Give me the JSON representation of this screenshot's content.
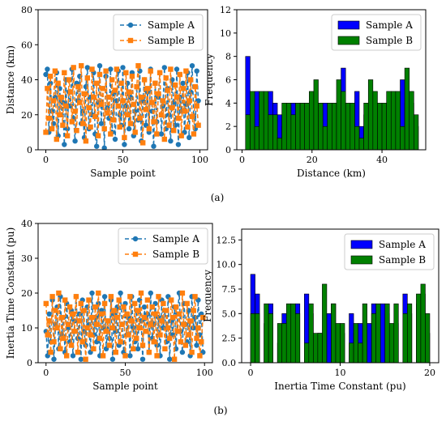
{
  "captions": [
    "(a)",
    "(b)"
  ],
  "chart_data": [
    {
      "type": "line",
      "panel": "a-left",
      "xlabel": "Sample point",
      "ylabel": "Distance (km)",
      "xlim": [
        -5,
        105
      ],
      "ylim": [
        0,
        80
      ],
      "xticks": [
        "0",
        "50",
        "100"
      ],
      "yticks": [
        "0",
        "20",
        "40",
        "60",
        "80"
      ],
      "legend": "top-right",
      "series": [
        {
          "name": "Sample A",
          "color": "#1f77b4",
          "marker": "circle",
          "style": "dashed",
          "x": [
            0,
            1,
            2,
            3,
            4,
            5,
            6,
            7,
            8,
            9,
            10,
            11,
            12,
            13,
            14,
            15,
            16,
            17,
            18,
            19,
            20,
            21,
            22,
            23,
            24,
            25,
            26,
            27,
            28,
            29,
            30,
            31,
            32,
            33,
            34,
            35,
            36,
            37,
            38,
            39,
            40,
            41,
            42,
            43,
            44,
            45,
            46,
            47,
            48,
            49,
            50,
            51,
            52,
            53,
            54,
            55,
            56,
            57,
            58,
            59,
            60,
            61,
            62,
            63,
            64,
            65,
            66,
            67,
            68,
            69,
            70,
            71,
            72,
            73,
            74,
            75,
            76,
            77,
            78,
            79,
            80,
            81,
            82,
            83,
            84,
            85,
            86,
            87,
            88,
            89,
            90,
            91,
            92,
            93,
            94,
            95,
            96,
            97,
            98,
            99
          ],
          "y": [
            43,
            46,
            10,
            38,
            22,
            15,
            30,
            44,
            8,
            35,
            20,
            27,
            3,
            40,
            12,
            33,
            25,
            46,
            18,
            5,
            38,
            28,
            42,
            15,
            22,
            7,
            36,
            47,
            12,
            30,
            20,
            44,
            9,
            2,
            27,
            48,
            15,
            35,
            1,
            42,
            24,
            18,
            46,
            10,
            32,
            6,
            28,
            45,
            20,
            14,
            47,
            3,
            25,
            38,
            12,
            30,
            44,
            8,
            22,
            36,
            17,
            45,
            5,
            28,
            40,
            14,
            33,
            10,
            46,
            22,
            2,
            38,
            16,
            30,
            44,
            9,
            25,
            47,
            12,
            35,
            20,
            5,
            40,
            27,
            14,
            46,
            3,
            30,
            22,
            38,
            10,
            26,
            44,
            7,
            33,
            48,
            19,
            12,
            45,
            28
          ]
        },
        {
          "name": "Sample B",
          "color": "#ff7f0e",
          "marker": "square",
          "style": "dashed",
          "x": [
            0,
            1,
            2,
            3,
            4,
            5,
            6,
            7,
            8,
            9,
            10,
            11,
            12,
            13,
            14,
            15,
            16,
            17,
            18,
            19,
            20,
            21,
            22,
            23,
            24,
            25,
            26,
            27,
            28,
            29,
            30,
            31,
            32,
            33,
            34,
            35,
            36,
            37,
            38,
            39,
            40,
            41,
            42,
            43,
            44,
            45,
            46,
            47,
            48,
            49,
            50,
            51,
            52,
            53,
            54,
            55,
            56,
            57,
            58,
            59,
            60,
            61,
            62,
            63,
            64,
            65,
            66,
            67,
            68,
            69,
            70,
            71,
            72,
            73,
            74,
            75,
            76,
            77,
            78,
            79,
            80,
            81,
            82,
            83,
            84,
            85,
            86,
            87,
            88,
            89,
            90,
            91,
            92,
            93,
            94,
            95,
            96,
            97,
            98,
            99
          ],
          "y": [
            10,
            35,
            18,
            42,
            12,
            28,
            45,
            6,
            38,
            20,
            30,
            14,
            44,
            25,
            8,
            40,
            33,
            16,
            47,
            22,
            11,
            36,
            27,
            48,
            15,
            32,
            5,
            41,
            24,
            13,
            46,
            30,
            19,
            38,
            8,
            43,
            26,
            35,
            12,
            45,
            21,
            30,
            9,
            40,
            17,
            34,
            46,
            25,
            13,
            38,
            28,
            7,
            44,
            20,
            33,
            15,
            42,
            26,
            10,
            36,
            48,
            18,
            30,
            4,
            40,
            23,
            35,
            12,
            45,
            27,
            16,
            38,
            9,
            32,
            44,
            20,
            28,
            6,
            41,
            34,
            14,
            46,
            24,
            11,
            37,
            30,
            18,
            43,
            8,
            35,
            22,
            45,
            13,
            28,
            40,
            19,
            9,
            36,
            25,
            14
          ]
        }
      ]
    },
    {
      "type": "bar",
      "panel": "a-right",
      "xlabel": "Distance (km)",
      "ylabel": "Frequency",
      "xlim": [
        -1.5,
        52.5
      ],
      "ylim": [
        0,
        12
      ],
      "xticks": [
        "0",
        "20",
        "40"
      ],
      "yticks": [
        "0",
        "2",
        "4",
        "6",
        "8",
        "10",
        "12"
      ],
      "legend": "top-right",
      "bin_edges": [
        1.0,
        2.3,
        3.6,
        4.9,
        6.2,
        7.5,
        8.8,
        10.1,
        11.4,
        12.7,
        14.0,
        15.3,
        16.6,
        17.9,
        19.2,
        20.5,
        21.8,
        23.1,
        24.4,
        25.7,
        27.0,
        28.3,
        29.6,
        30.9,
        32.2,
        33.5,
        34.8,
        36.1,
        37.4,
        38.7,
        40.0,
        41.3,
        42.6,
        43.9,
        45.2,
        46.5,
        47.8,
        49.1,
        50.4
      ],
      "series": [
        {
          "name": "Sample A",
          "color": "#0000ff",
          "values": [
            8,
            3,
            5,
            3,
            2,
            5,
            4,
            3,
            2,
            3,
            4,
            3,
            4,
            4,
            3,
            2,
            4,
            4,
            4,
            4,
            2,
            7,
            2,
            2,
            5,
            2,
            3,
            4,
            2,
            2,
            3,
            4,
            2,
            2,
            6,
            4,
            4,
            2
          ]
        },
        {
          "name": "Sample B",
          "color": "#008000",
          "values": [
            3,
            5,
            2,
            5,
            5,
            3,
            3,
            1,
            4,
            4,
            3,
            4,
            4,
            4,
            5,
            6,
            4,
            2,
            4,
            4,
            6,
            5,
            4,
            4,
            2,
            1,
            4,
            6,
            5,
            4,
            4,
            5,
            5,
            5,
            2,
            7,
            5,
            3
          ]
        }
      ]
    },
    {
      "type": "line",
      "panel": "b-left",
      "xlabel": "Sample point",
      "ylabel": "Inertia Time Constant (pu)",
      "xlim": [
        -5,
        105
      ],
      "ylim": [
        0,
        40
      ],
      "xticks": [
        "0",
        "50",
        "100"
      ],
      "yticks": [
        "0",
        "10",
        "20",
        "30",
        "40"
      ],
      "legend": "top-right",
      "series": [
        {
          "name": "Sample A",
          "color": "#1f77b4",
          "marker": "circle",
          "style": "dashed",
          "x": [
            0,
            1,
            2,
            3,
            4,
            5,
            6,
            7,
            8,
            9,
            10,
            11,
            12,
            13,
            14,
            15,
            16,
            17,
            18,
            19,
            20,
            21,
            22,
            23,
            24,
            25,
            26,
            27,
            28,
            29,
            30,
            31,
            32,
            33,
            34,
            35,
            36,
            37,
            38,
            39,
            40,
            41,
            42,
            43,
            44,
            45,
            46,
            47,
            48,
            49,
            50,
            51,
            52,
            53,
            54,
            55,
            56,
            57,
            58,
            59,
            60,
            61,
            62,
            63,
            64,
            65,
            66,
            67,
            68,
            69,
            70,
            71,
            72,
            73,
            74,
            75,
            76,
            77,
            78,
            79,
            80,
            81,
            82,
            83,
            84,
            85,
            86,
            87,
            88,
            89,
            90,
            91,
            92,
            93,
            94,
            95,
            96,
            97,
            98,
            99
          ],
          "y": [
            9,
            2,
            14,
            6,
            18,
            1,
            11,
            16,
            4,
            19,
            8,
            13,
            3,
            17,
            10,
            6,
            15,
            2,
            12,
            19,
            7,
            14,
            1,
            18,
            9,
            5,
            16,
            11,
            3,
            20,
            8,
            13,
            6,
            17,
            2,
            15,
            10,
            19,
            4,
            12,
            7,
            18,
            1,
            14,
            9,
            16,
            5,
            20,
            11,
            3,
            17,
            8,
            13,
            2,
            19,
            10,
            6,
            15,
            4,
            18,
            12,
            1,
            16,
            9,
            14,
            3,
            20,
            7,
            11,
            17,
            5,
            13,
            2,
            18,
            10,
            15,
            6,
            19,
            1,
            12,
            8,
            16,
            4,
            14,
            20,
            9,
            3,
            17,
            11,
            6,
            15,
            2,
            19,
            10,
            13,
            5,
            18,
            8,
            14,
            3
          ]
        },
        {
          "name": "Sample B",
          "color": "#ff7f0e",
          "marker": "square",
          "style": "dashed",
          "x": [
            0,
            1,
            2,
            3,
            4,
            5,
            6,
            7,
            8,
            9,
            10,
            11,
            12,
            13,
            14,
            15,
            16,
            17,
            18,
            19,
            20,
            21,
            22,
            23,
            24,
            25,
            26,
            27,
            28,
            29,
            30,
            31,
            32,
            33,
            34,
            35,
            36,
            37,
            38,
            39,
            40,
            41,
            42,
            43,
            44,
            45,
            46,
            47,
            48,
            49,
            50,
            51,
            52,
            53,
            54,
            55,
            56,
            57,
            58,
            59,
            60,
            61,
            62,
            63,
            64,
            65,
            66,
            67,
            68,
            69,
            70,
            71,
            72,
            73,
            74,
            75,
            76,
            77,
            78,
            79,
            80,
            81,
            82,
            83,
            84,
            85,
            86,
            87,
            88,
            89,
            90,
            91,
            92,
            93,
            94,
            95,
            96,
            97,
            98,
            99
          ],
          "y": [
            17,
            8,
            12,
            3,
            19,
            6,
            15,
            10,
            20,
            4,
            13,
            7,
            18,
            2,
            11,
            16,
            5,
            14,
            9,
            19,
            3,
            12,
            17,
            6,
            15,
            1,
            10,
            18,
            8,
            13,
            4,
            16,
            11,
            20,
            7,
            14,
            2,
            17,
            9,
            12,
            5,
            19,
            10,
            15,
            3,
            13,
            18,
            6,
            11,
            16,
            2,
            14,
            8,
            19,
            12,
            4,
            17,
            7,
            15,
            10,
            20,
            5,
            13,
            9,
            18,
            3,
            11,
            16,
            6,
            14,
            2,
            19,
            8,
            12,
            17,
            4,
            15,
            10,
            7,
            18,
            13,
            1,
            16,
            9,
            14,
            6,
            20,
            11,
            5,
            17,
            8,
            12,
            3,
            15,
            19,
            7,
            10,
            2,
            6,
            13
          ]
        }
      ]
    },
    {
      "type": "bar",
      "panel": "b-right",
      "xlabel": "Inertia Time Constant (pu)",
      "ylabel": "Frequency",
      "xlim": [
        -1.0,
        21.0
      ],
      "ylim": [
        0,
        13.6
      ],
      "xticks": [
        "0",
        "10",
        "20"
      ],
      "yticks": [
        "0.0",
        "2.5",
        "5.0",
        "7.5",
        "10.0",
        "12.5"
      ],
      "legend": "top-right",
      "bin_edges": [
        0.0,
        0.5,
        1.0,
        1.5,
        2.0,
        2.5,
        3.0,
        3.5,
        4.0,
        4.5,
        5.0,
        5.5,
        6.0,
        6.5,
        7.0,
        7.5,
        8.0,
        8.5,
        9.0,
        9.5,
        10.0,
        10.5,
        11.0,
        11.5,
        12.0,
        12.5,
        13.0,
        13.5,
        14.0,
        14.5,
        15.0,
        15.5,
        16.0,
        16.5,
        17.0,
        17.5,
        18.0,
        18.5,
        19.0,
        19.5,
        20.0
      ],
      "series": [
        {
          "name": "Sample A",
          "color": "#0000ff",
          "values": [
            9,
            7,
            0,
            4,
            6,
            0,
            2,
            5,
            4,
            4,
            6,
            0,
            7,
            5,
            2,
            3,
            0,
            5,
            6,
            2,
            3,
            0,
            5,
            3,
            4,
            0,
            4,
            6,
            0,
            6,
            5,
            3,
            4,
            0,
            7,
            5,
            0,
            6,
            7,
            3
          ]
        },
        {
          "name": "Sample B",
          "color": "#008000",
          "values": [
            5,
            5,
            0,
            6,
            5,
            0,
            4,
            4,
            6,
            6,
            5,
            0,
            2,
            6,
            3,
            3,
            8,
            0,
            6,
            4,
            4,
            0,
            2,
            4,
            2,
            6,
            0,
            5,
            6,
            0,
            6,
            4,
            6,
            0,
            5,
            6,
            0,
            7,
            8,
            5
          ]
        }
      ]
    }
  ]
}
